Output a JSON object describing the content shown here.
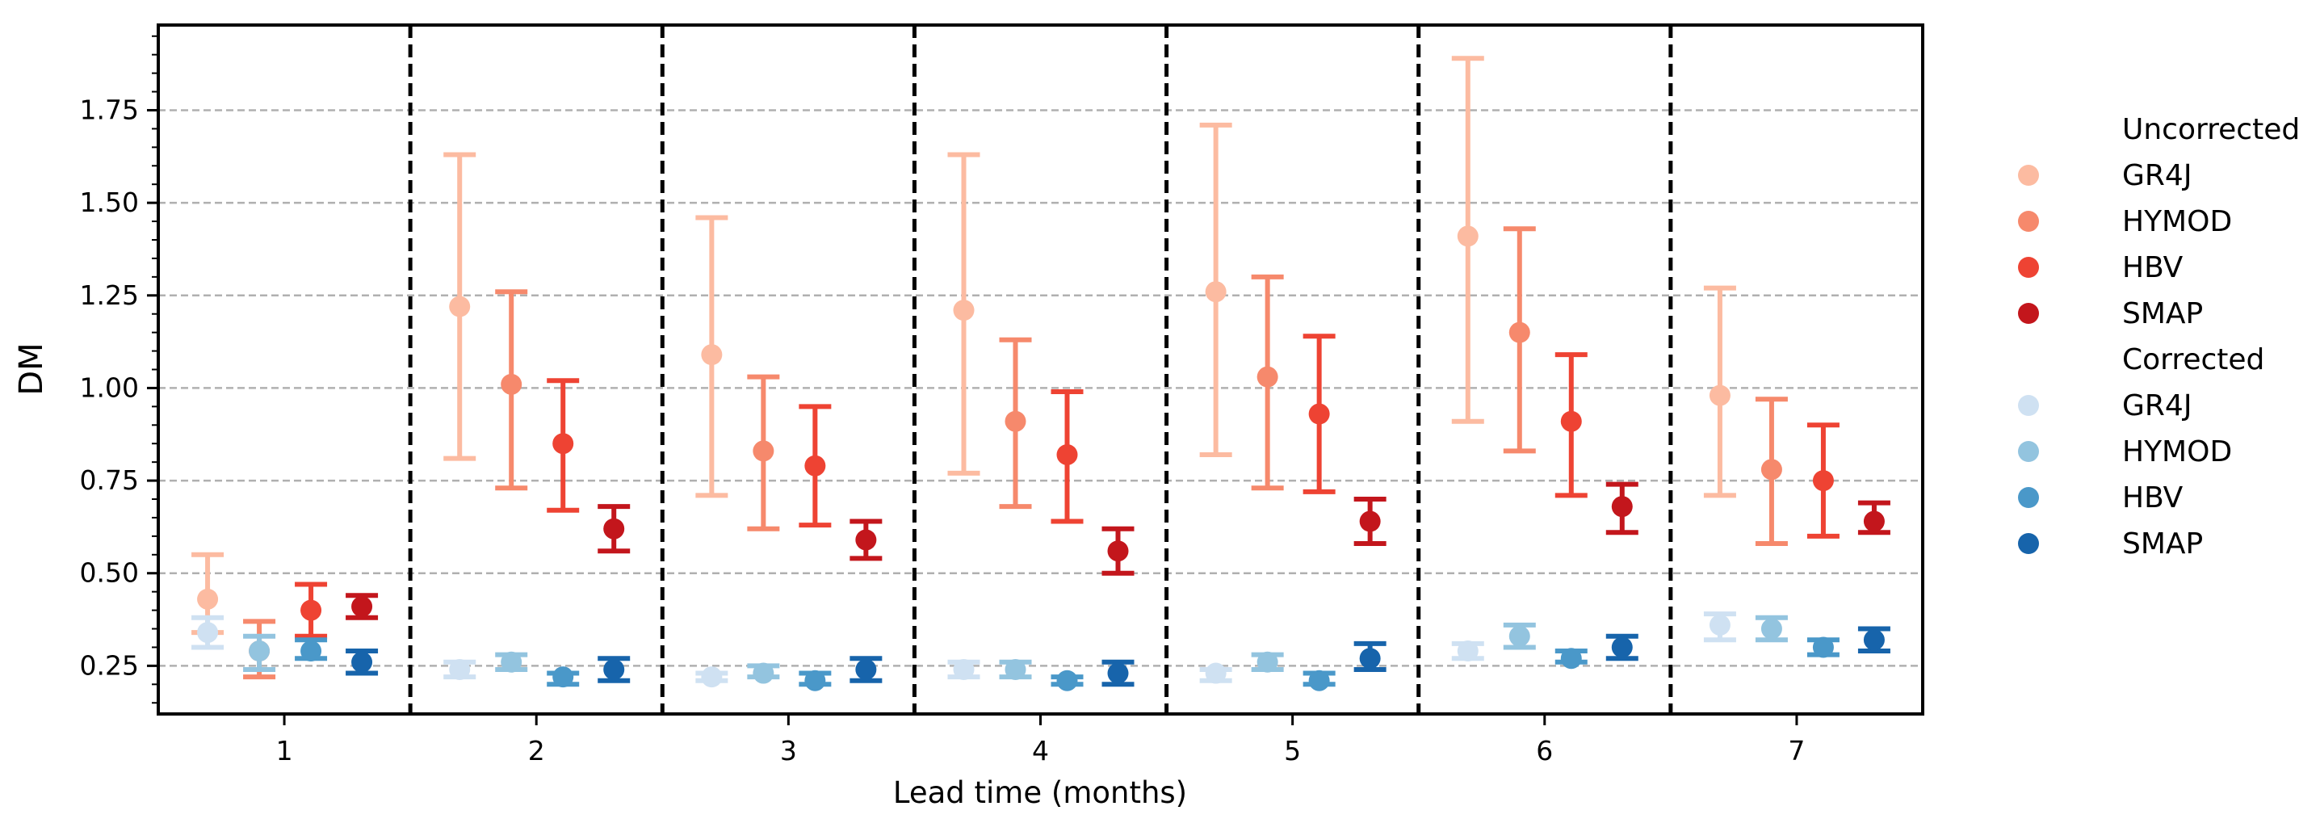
{
  "chart_data": {
    "type": "errorbar",
    "title": "",
    "xlabel": "Lead time (months)",
    "ylabel": "DM",
    "categories": [
      "1",
      "2",
      "3",
      "4",
      "5",
      "6",
      "7"
    ],
    "ylim": [
      0.12,
      1.98
    ],
    "yticks": [
      "0.25",
      "0.50",
      "0.75",
      "1.00",
      "1.25",
      "1.50",
      "1.75"
    ],
    "grid": "horizontal dashed",
    "legend_position": "right",
    "groups": [
      {
        "title": "Uncorrected",
        "series": [
          {
            "name": "GR4J",
            "color": "#fcbba1",
            "values": [
              0.43,
              1.22,
              1.09,
              1.21,
              1.26,
              1.41,
              0.98
            ],
            "lower": [
              0.34,
              0.81,
              0.71,
              0.77,
              0.82,
              0.91,
              0.71
            ],
            "upper": [
              0.55,
              1.63,
              1.46,
              1.63,
              1.71,
              1.89,
              1.27
            ]
          },
          {
            "name": "HYMOD",
            "color": "#f6896c",
            "values": [
              0.29,
              1.01,
              0.83,
              0.91,
              1.03,
              1.15,
              0.78
            ],
            "lower": [
              0.22,
              0.73,
              0.62,
              0.68,
              0.73,
              0.83,
              0.58
            ],
            "upper": [
              0.37,
              1.26,
              1.03,
              1.13,
              1.3,
              1.43,
              0.97
            ]
          },
          {
            "name": "HBV",
            "color": "#ee4333",
            "values": [
              0.4,
              0.85,
              0.79,
              0.82,
              0.93,
              0.91,
              0.75
            ],
            "lower": [
              0.33,
              0.67,
              0.63,
              0.64,
              0.72,
              0.71,
              0.6
            ],
            "upper": [
              0.47,
              1.02,
              0.95,
              0.99,
              1.14,
              1.09,
              0.9
            ]
          },
          {
            "name": "SMAP",
            "color": "#c3161c",
            "values": [
              0.41,
              0.62,
              0.59,
              0.56,
              0.64,
              0.68,
              0.64
            ],
            "lower": [
              0.38,
              0.56,
              0.54,
              0.5,
              0.58,
              0.61,
              0.61
            ],
            "upper": [
              0.44,
              0.68,
              0.64,
              0.62,
              0.7,
              0.74,
              0.69
            ]
          }
        ]
      },
      {
        "title": "Corrected",
        "series": [
          {
            "name": "GR4J",
            "color": "#cfe1f2",
            "values": [
              0.34,
              0.24,
              0.22,
              0.24,
              0.23,
              0.29,
              0.36
            ],
            "lower": [
              0.3,
              0.22,
              0.21,
              0.22,
              0.21,
              0.27,
              0.32
            ],
            "upper": [
              0.38,
              0.26,
              0.23,
              0.26,
              0.24,
              0.31,
              0.39
            ]
          },
          {
            "name": "HYMOD",
            "color": "#93c4df",
            "values": [
              0.29,
              0.26,
              0.23,
              0.24,
              0.26,
              0.33,
              0.35
            ],
            "lower": [
              0.24,
              0.24,
              0.22,
              0.22,
              0.24,
              0.3,
              0.32
            ],
            "upper": [
              0.33,
              0.28,
              0.25,
              0.26,
              0.28,
              0.36,
              0.38
            ]
          },
          {
            "name": "HBV",
            "color": "#4a98c9",
            "values": [
              0.29,
              0.22,
              0.21,
              0.21,
              0.21,
              0.27,
              0.3
            ],
            "lower": [
              0.27,
              0.2,
              0.2,
              0.2,
              0.2,
              0.26,
              0.28
            ],
            "upper": [
              0.32,
              0.23,
              0.23,
              0.22,
              0.23,
              0.29,
              0.32
            ]
          },
          {
            "name": "SMAP",
            "color": "#1764ab",
            "values": [
              0.26,
              0.24,
              0.24,
              0.23,
              0.27,
              0.3,
              0.32
            ],
            "lower": [
              0.23,
              0.21,
              0.21,
              0.2,
              0.24,
              0.27,
              0.29
            ],
            "upper": [
              0.29,
              0.27,
              0.27,
              0.26,
              0.31,
              0.33,
              0.35
            ]
          }
        ]
      }
    ]
  }
}
